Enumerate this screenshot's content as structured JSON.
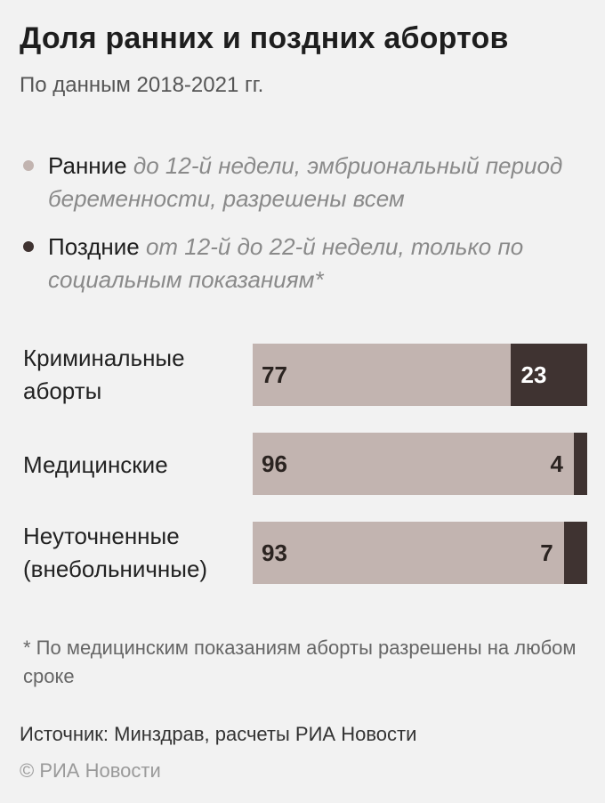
{
  "header": {
    "title": "Доля ранних и поздних абортов",
    "subtitle": "По данным 2018-2021 гг."
  },
  "legend": [
    {
      "name": "Ранние",
      "description": "до 12-й недели, эмбриональный период беременности, разрешены всем",
      "color": "#c2b4b0"
    },
    {
      "name": "Поздние",
      "description": "от 12-й до 22-й недели, только по социальным показаниям*",
      "color": "#3f3331"
    }
  ],
  "chart_data": {
    "type": "bar",
    "orientation": "horizontal",
    "stacked": true,
    "normalized_to": 100,
    "categories": [
      "Криминальные аборты",
      "Медицинские",
      "Неуточненные (внебольничные)"
    ],
    "series": [
      {
        "name": "Ранние",
        "values": [
          77,
          96,
          93
        ],
        "color": "#c2b4b0"
      },
      {
        "name": "Поздние",
        "values": [
          23,
          4,
          7
        ],
        "color": "#3f3331"
      }
    ]
  },
  "rows": [
    {
      "label_line1": "Криминальные",
      "label_line2": "аборты",
      "early": "77",
      "late": "23"
    },
    {
      "label_line1": "Медицинские",
      "label_line2": "",
      "early": "96",
      "late": "4"
    },
    {
      "label_line1": "Неуточненные",
      "label_line2": "(внебольничные)",
      "early": "93",
      "late": "7"
    }
  ],
  "footnote": "* По медицинским показаниям аборты разрешены на любом сроке",
  "source": "Источник: Минздрав, расчеты РИА Новости",
  "copyright": "© РИА Новости"
}
